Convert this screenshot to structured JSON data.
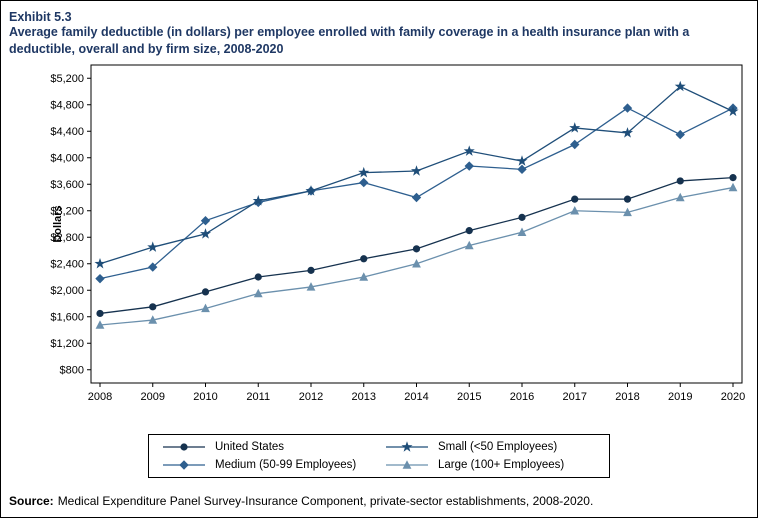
{
  "header": {
    "exhibit": "Exhibit 5.3",
    "title": "Average family deductible (in dollars) per employee enrolled with family coverage in a health insurance plan with a deductible, overall and by firm size, 2008-2020"
  },
  "footer": {
    "source_label": "Source:",
    "source_text": "Medical Expenditure Panel Survey-Insurance Component, private-sector establishments, 2008-2020."
  },
  "colors": {
    "title_text": "#1f3864",
    "axis": "#000000"
  },
  "chart_data": {
    "type": "line",
    "title": "Average family deductible (in dollars) per employee enrolled with family coverage in a health insurance plan with a deductible, overall and by firm size, 2008-2020",
    "xlabel": "",
    "ylabel": "Dollars",
    "grid": false,
    "legend_position": "bottom",
    "x": [
      2008,
      2009,
      2010,
      2011,
      2012,
      2013,
      2014,
      2015,
      2016,
      2017,
      2018,
      2019,
      2020
    ],
    "ylim": [
      600,
      5400
    ],
    "yticks": [
      800,
      1200,
      1600,
      2000,
      2400,
      2800,
      3200,
      3600,
      4000,
      4400,
      4800,
      5200
    ],
    "ytick_labels": [
      "$800",
      "$1,200",
      "$1,600",
      "$2,000",
      "$2,400",
      "$2,800",
      "$3,200",
      "$3,600",
      "$4,000",
      "$4,400",
      "$4,800",
      "$5,200"
    ],
    "series": [
      {
        "name": "United States",
        "marker": "circle",
        "color": "#16324f",
        "values": [
          1650,
          1750,
          1975,
          2200,
          2300,
          2475,
          2625,
          2900,
          3100,
          3375,
          3375,
          3650,
          3700
        ]
      },
      {
        "name": "Medium (50-99 Employees)",
        "marker": "diamond",
        "color": "#2e5f8f",
        "values": [
          2175,
          2350,
          3050,
          3325,
          3500,
          3625,
          3400,
          3875,
          3825,
          4200,
          4750,
          4350,
          4750
        ]
      },
      {
        "name": "Small (<50 Employees)",
        "marker": "star",
        "color": "#1f4e79",
        "values": [
          2400,
          2650,
          2850,
          3350,
          3500,
          3775,
          3800,
          4100,
          3950,
          4450,
          4375,
          5075,
          4700
        ]
      },
      {
        "name": "Large (100+ Employees)",
        "marker": "triangle",
        "color": "#6b90ad",
        "values": [
          1475,
          1550,
          1725,
          1950,
          2050,
          2200,
          2400,
          2675,
          2875,
          3200,
          3175,
          3400,
          3550
        ]
      }
    ],
    "legend_row_major_order": [
      0,
      2,
      1,
      3
    ]
  }
}
